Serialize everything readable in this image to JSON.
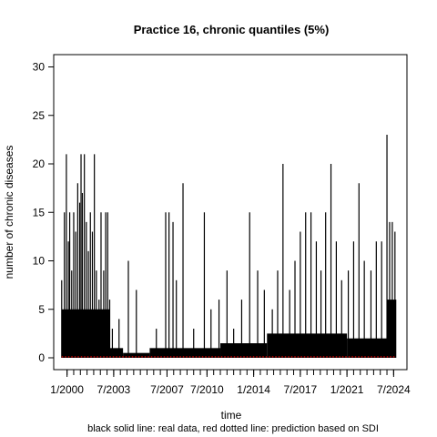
{
  "chart_data": {
    "type": "bar",
    "title": "Practice 16, chronic quantiles (5%)",
    "xlabel": "time",
    "ylabel": "number of chronic diseases",
    "caption": "black solid line: real data, red dotted line: prediction based on SDI",
    "ylim": [
      0,
      30
    ],
    "y_ticks": [
      0,
      5,
      10,
      15,
      20,
      25,
      30
    ],
    "y_tick_labels": [
      "0",
      "5",
      "10",
      "15",
      "20",
      "25",
      "30"
    ],
    "x_range_years": [
      1999.0,
      2025.5
    ],
    "x_tick_labels": [
      {
        "year": 2000.0,
        "label": "1/2000"
      },
      {
        "year": 2003.5,
        "label": "7/2003"
      },
      {
        "year": 2007.5,
        "label": "7/2007"
      },
      {
        "year": 2010.5,
        "label": "7/2010"
      },
      {
        "year": 2014.0,
        "label": "1/2014"
      },
      {
        "year": 2017.5,
        "label": "7/2017"
      },
      {
        "year": 2021.0,
        "label": "1/2021"
      },
      {
        "year": 2024.5,
        "label": "7/2024"
      }
    ],
    "minor_tick_step_years": 0.5,
    "data_range_years": [
      1999.6,
      2024.7
    ],
    "colors": {
      "real": "#000000",
      "prediction": "#dd0000"
    },
    "series": [
      {
        "name": "real data",
        "style": "solid",
        "spikes": [
          {
            "x": 1999.6,
            "y": 8
          },
          {
            "x": 1999.8,
            "y": 15
          },
          {
            "x": 1999.95,
            "y": 21
          },
          {
            "x": 2000.1,
            "y": 12
          },
          {
            "x": 2000.2,
            "y": 15
          },
          {
            "x": 2000.35,
            "y": 9
          },
          {
            "x": 2000.5,
            "y": 15
          },
          {
            "x": 2000.65,
            "y": 13
          },
          {
            "x": 2000.8,
            "y": 18
          },
          {
            "x": 2000.95,
            "y": 16
          },
          {
            "x": 2001.05,
            "y": 21
          },
          {
            "x": 2001.15,
            "y": 17
          },
          {
            "x": 2001.3,
            "y": 21
          },
          {
            "x": 2001.45,
            "y": 14
          },
          {
            "x": 2001.6,
            "y": 11
          },
          {
            "x": 2001.75,
            "y": 15
          },
          {
            "x": 2001.9,
            "y": 13
          },
          {
            "x": 2002.05,
            "y": 21
          },
          {
            "x": 2002.2,
            "y": 9
          },
          {
            "x": 2002.4,
            "y": 6
          },
          {
            "x": 2002.55,
            "y": 15
          },
          {
            "x": 2002.75,
            "y": 9
          },
          {
            "x": 2002.9,
            "y": 15
          },
          {
            "x": 2003.05,
            "y": 15
          },
          {
            "x": 2003.2,
            "y": 6
          },
          {
            "x": 2003.4,
            "y": 3
          },
          {
            "x": 2003.9,
            "y": 4
          },
          {
            "x": 2004.6,
            "y": 10
          },
          {
            "x": 2005.2,
            "y": 7
          },
          {
            "x": 2006.7,
            "y": 3
          },
          {
            "x": 2007.4,
            "y": 15
          },
          {
            "x": 2007.65,
            "y": 15
          },
          {
            "x": 2007.95,
            "y": 14
          },
          {
            "x": 2008.2,
            "y": 8
          },
          {
            "x": 2008.7,
            "y": 18
          },
          {
            "x": 2009.5,
            "y": 3
          },
          {
            "x": 2010.3,
            "y": 15
          },
          {
            "x": 2010.8,
            "y": 5
          },
          {
            "x": 2011.4,
            "y": 6
          },
          {
            "x": 2012.0,
            "y": 9
          },
          {
            "x": 2012.5,
            "y": 3
          },
          {
            "x": 2013.1,
            "y": 6
          },
          {
            "x": 2013.7,
            "y": 15
          },
          {
            "x": 2014.3,
            "y": 9
          },
          {
            "x": 2014.8,
            "y": 7
          },
          {
            "x": 2015.4,
            "y": 5
          },
          {
            "x": 2015.8,
            "y": 9
          },
          {
            "x": 2016.2,
            "y": 20
          },
          {
            "x": 2016.7,
            "y": 7
          },
          {
            "x": 2017.1,
            "y": 10
          },
          {
            "x": 2017.5,
            "y": 13
          },
          {
            "x": 2017.9,
            "y": 15
          },
          {
            "x": 2018.3,
            "y": 15
          },
          {
            "x": 2018.7,
            "y": 12
          },
          {
            "x": 2019.05,
            "y": 9
          },
          {
            "x": 2019.4,
            "y": 15
          },
          {
            "x": 2019.8,
            "y": 20
          },
          {
            "x": 2020.2,
            "y": 12
          },
          {
            "x": 2020.6,
            "y": 8
          },
          {
            "x": 2021.1,
            "y": 9
          },
          {
            "x": 2021.5,
            "y": 12
          },
          {
            "x": 2021.9,
            "y": 18
          },
          {
            "x": 2022.3,
            "y": 10
          },
          {
            "x": 2022.8,
            "y": 9
          },
          {
            "x": 2023.2,
            "y": 12
          },
          {
            "x": 2023.6,
            "y": 12
          },
          {
            "x": 2024.0,
            "y": 23
          },
          {
            "x": 2024.2,
            "y": 14
          },
          {
            "x": 2024.4,
            "y": 14
          },
          {
            "x": 2024.6,
            "y": 13
          }
        ],
        "baseline_segments": [
          {
            "from": 1999.6,
            "to": 2003.2,
            "level": 5
          },
          {
            "from": 2003.2,
            "to": 2004.2,
            "level": 1
          },
          {
            "from": 2004.2,
            "to": 2006.2,
            "level": 0.5
          },
          {
            "from": 2006.2,
            "to": 2011.5,
            "level": 1
          },
          {
            "from": 2011.5,
            "to": 2015.0,
            "level": 1.5
          },
          {
            "from": 2015.0,
            "to": 2021.0,
            "level": 2.5
          },
          {
            "from": 2021.0,
            "to": 2024.0,
            "level": 2
          },
          {
            "from": 2024.0,
            "to": 2024.7,
            "level": 6
          }
        ]
      },
      {
        "name": "prediction based on SDI",
        "style": "dotted",
        "level": 0.1
      }
    ]
  }
}
